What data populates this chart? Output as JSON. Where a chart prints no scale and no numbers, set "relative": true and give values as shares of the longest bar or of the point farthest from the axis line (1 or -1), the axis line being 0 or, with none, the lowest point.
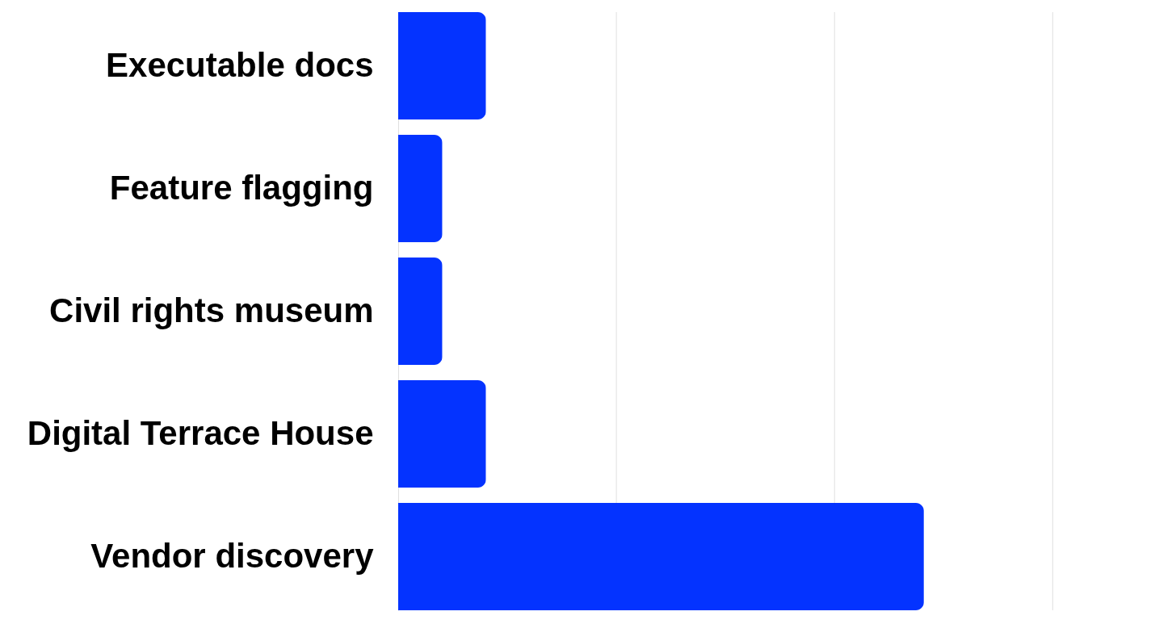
{
  "chart_data": {
    "type": "bar",
    "orientation": "horizontal",
    "relative": true,
    "categories": [
      "Executable docs",
      "Feature flagging",
      "Civil rights museum",
      "Digital Terrace House",
      "Vendor discovery"
    ],
    "values": [
      0.167,
      0.084,
      0.084,
      0.167,
      1
    ],
    "color": "#0433ff",
    "tick_labels": "y",
    "ref_lines": [
      {
        "axis": "x",
        "value": 0.415,
        "color": "#e0e0e0"
      },
      {
        "axis": "x",
        "value": 0.83,
        "color": "#e0e0e0"
      },
      {
        "axis": "x",
        "value": 1.245,
        "color": "#e0e0e0"
      }
    ]
  }
}
